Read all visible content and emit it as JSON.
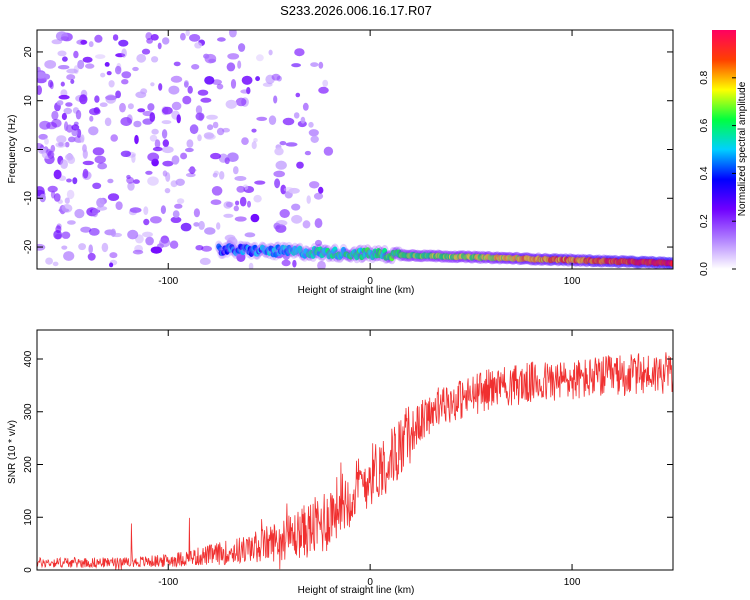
{
  "title": "S233.2026.006.16.17.R07",
  "chart_data": [
    {
      "type": "heatmap",
      "xlabel": "Height of straight line (km)",
      "ylabel": "Frequency (Hz)",
      "xlim": [
        -165,
        150
      ],
      "ylim": [
        -24.5,
        24.5
      ],
      "xticks": [
        -100,
        0,
        100
      ],
      "yticks": [
        -20,
        -10,
        0,
        10,
        20
      ],
      "colorbar": {
        "label": "Normalized spectral amplitude",
        "range": [
          0,
          1
        ],
        "ticks": [
          "0.0",
          "0.2",
          "0.4",
          "0.6",
          "0.8"
        ],
        "colors": [
          "#ffffff",
          "#b080ff",
          "#7000ff",
          "#0000ff",
          "#00d0ff",
          "#00ff40",
          "#ffff00",
          "#ff4000",
          "#ff0060"
        ]
      },
      "features": [
        {
          "name": "noise",
          "x_range": [
            -165,
            -20
          ],
          "freq_range": [
            -24,
            24
          ],
          "amplitude": 0.15
        },
        {
          "name": "line",
          "x_range": [
            -75,
            150
          ],
          "freq_start": -20.5,
          "freq_end": -23.3,
          "amplitude_start": 0.4,
          "amplitude_end": 0.95
        }
      ]
    },
    {
      "type": "line",
      "xlabel": "Height of straight line (km)",
      "ylabel": "SNR (10 * v/v)",
      "xlim": [
        -165,
        150
      ],
      "ylim": [
        0,
        455
      ],
      "xticks": [
        -100,
        0,
        100
      ],
      "yticks": [
        0,
        100,
        200,
        300,
        400
      ],
      "color": "#f03030",
      "trend": {
        "x": [
          -165,
          -120,
          -100,
          -80,
          -60,
          -40,
          -25,
          -20,
          -15,
          -10,
          -5,
          0,
          5,
          10,
          20,
          30,
          40,
          50,
          60,
          80,
          100,
          120,
          150
        ],
        "y": [
          14,
          14,
          18,
          28,
          40,
          62,
          85,
          105,
          125,
          140,
          160,
          180,
          195,
          210,
          260,
          300,
          318,
          330,
          345,
          355,
          360,
          368,
          375
        ]
      }
    }
  ]
}
